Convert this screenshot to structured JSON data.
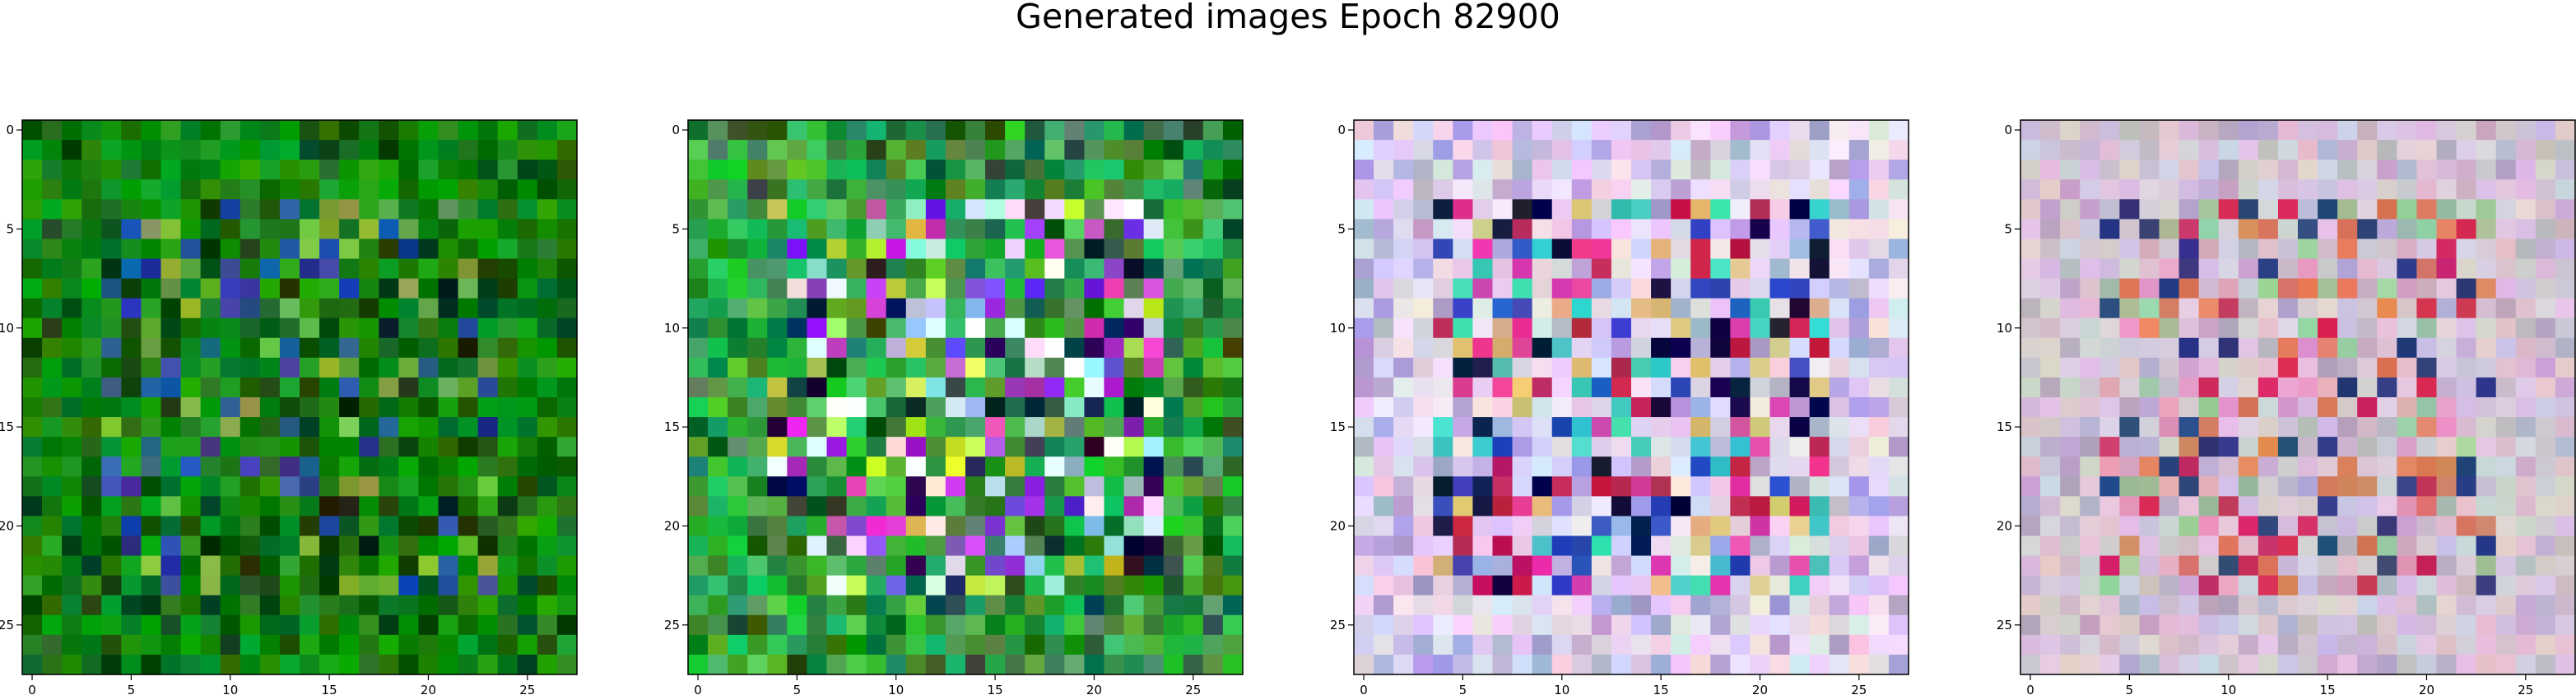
{
  "figure": {
    "title": "Generated images Epoch 82900"
  },
  "chart_data": [
    {
      "type": "heatmap",
      "title": "",
      "xlim": [
        -0.5,
        27.5
      ],
      "ylim": [
        27.5,
        -0.5
      ],
      "xticks": [
        0,
        5,
        10,
        15,
        20,
        25
      ],
      "yticks": [
        0,
        5,
        10,
        15,
        20,
        25
      ],
      "grid": false,
      "palette": {
        "base": "#128a12",
        "spread": 70,
        "inner_mix": [
          "#2a4aa0",
          "#0a3a0a",
          "#7ab040"
        ],
        "edge": "#0b5a0b"
      },
      "seed": 11
    },
    {
      "type": "heatmap",
      "title": "",
      "xlim": [
        -0.5,
        27.5
      ],
      "ylim": [
        27.5,
        -0.5
      ],
      "xticks": [
        0,
        5,
        10,
        15,
        20,
        25
      ],
      "yticks": [
        0,
        5,
        10,
        15,
        20,
        25
      ],
      "grid": false,
      "palette": {
        "base": "#3aa84a",
        "spread": 90,
        "inner_mix": [
          "#7a3ad8",
          "#101048",
          "#a8d8e0",
          "#d040d0",
          "#ffffff",
          "#c8e040"
        ],
        "edge": "#1a6a2a"
      },
      "seed": 23
    },
    {
      "type": "heatmap",
      "title": "",
      "xlim": [
        -0.5,
        27.5
      ],
      "ylim": [
        27.5,
        -0.5
      ],
      "xticks": [
        0,
        5,
        10,
        15,
        20,
        25
      ],
      "yticks": [
        0,
        5,
        10,
        15,
        20,
        25
      ],
      "grid": false,
      "palette": {
        "base": "#e6d8ee",
        "spread": 45,
        "inner_mix": [
          "#e040a0",
          "#3050c0",
          "#40d0c0",
          "#e0c080",
          "#101040",
          "#c02050"
        ],
        "edge": "#b0a8d8"
      },
      "seed": 37
    },
    {
      "type": "heatmap",
      "title": "",
      "xlim": [
        -0.5,
        27.5
      ],
      "ylim": [
        27.5,
        -0.5
      ],
      "xticks": [
        0,
        5,
        10,
        15,
        20,
        25
      ],
      "yticks": [
        0,
        5,
        10,
        15,
        20,
        25
      ],
      "grid": false,
      "palette": {
        "base": "#d8c8d8",
        "spread": 35,
        "inner_mix": [
          "#d03060",
          "#e08060",
          "#a0c8a0",
          "#304080",
          "#e0a0c0"
        ],
        "edge": "#c0b0c8"
      },
      "seed": 53
    }
  ]
}
